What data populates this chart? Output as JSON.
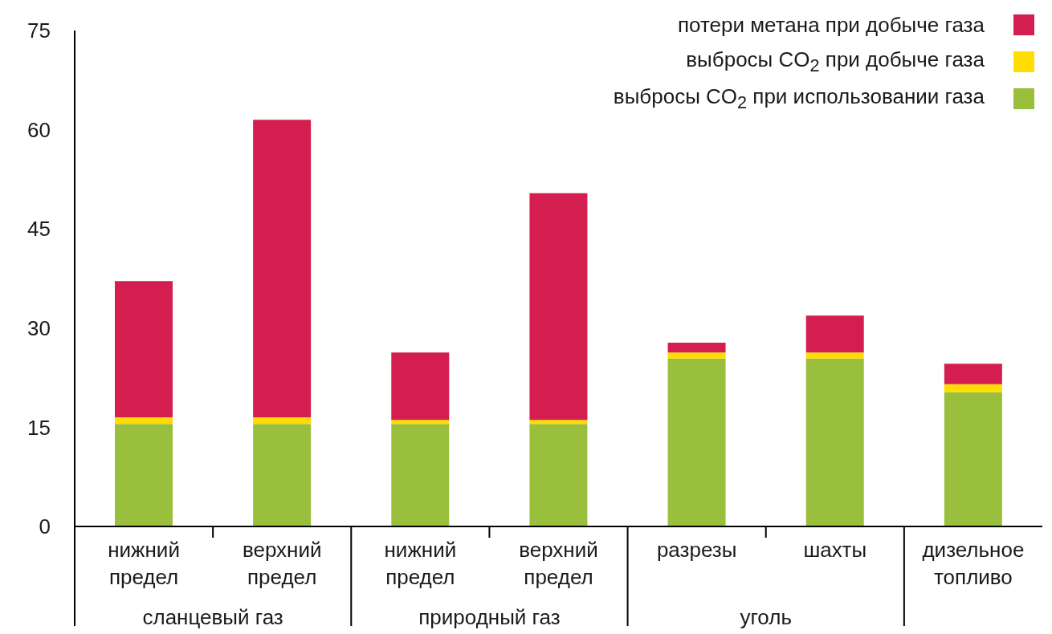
{
  "chart_data": {
    "type": "bar",
    "stacked": true,
    "categories": [
      "нижний предел",
      "верхний предел",
      "нижний предел",
      "верхний предел",
      "разрезы",
      "шахты",
      "дизельное топливо"
    ],
    "series": [
      {
        "name": "выбросы CO$_{2}$ при использовании газа",
        "color": "#9abf3d",
        "values": [
          15.5,
          15.5,
          15.5,
          15.5,
          25.4,
          25.4,
          20.3
        ]
      },
      {
        "name": "выбросы CO$_{2}$ при добыче газа",
        "color": "#ffdd00",
        "values": [
          1.0,
          1.0,
          0.6,
          0.6,
          0.9,
          0.9,
          1.2
        ]
      },
      {
        "name": "потери метана при добыче газа",
        "color": "#d41e50",
        "values": [
          20.6,
          45.0,
          10.2,
          34.3,
          1.5,
          5.6,
          3.1
        ]
      }
    ],
    "annotations": [
      "сланцевый газ",
      "природный газ",
      "уголь"
    ],
    "ylim": [
      0,
      75
    ],
    "yticks": [
      0,
      15,
      30,
      45,
      60,
      75
    ],
    "grid": false,
    "legend": "top right"
  }
}
